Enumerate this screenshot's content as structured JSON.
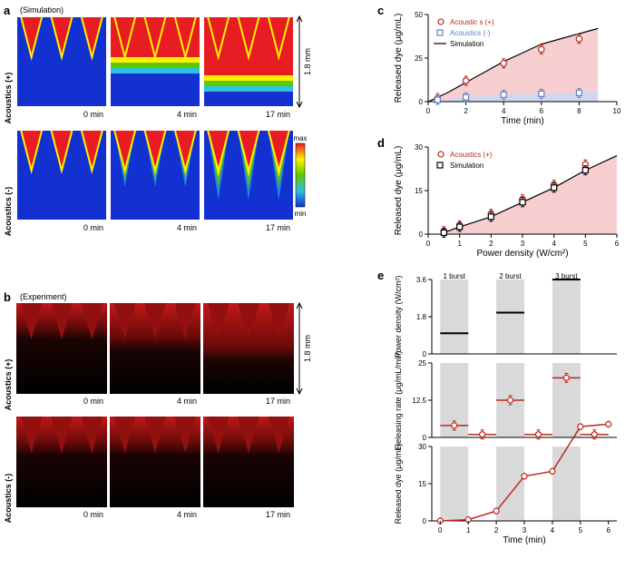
{
  "panelA": {
    "label": "a",
    "subtitle": "(Simulation)",
    "row1_label": "Acoustics (+)",
    "row2_label": "Acoustics (-)",
    "times": [
      "0 min",
      "4 min",
      "17 min"
    ],
    "scale_text": "1.8 mm",
    "colormap_labels": [
      "max",
      "min"
    ],
    "colors": {
      "bg": "#1330d0",
      "red": "#e81c23",
      "yellow": "#fff200",
      "cyan": "#2ec1e0",
      "green": "#5dc900"
    },
    "box_size": 100
  },
  "panelB": {
    "label": "b",
    "subtitle": "(Experiment)",
    "row1_label": "Acoustics (+)",
    "row2_label": "Acoustics (-)",
    "times": [
      "0 min",
      "4 min",
      "17 min"
    ],
    "scale_text": "1.8 mm",
    "box_size": 100
  },
  "panelC": {
    "label": "c",
    "legend": [
      "Acoustic s (+)",
      "Acoustics (-)",
      "Simulation"
    ],
    "legend_colors": [
      "#ba2a1d",
      "#6080c0",
      "#000000"
    ],
    "xlabel": "Time (min)",
    "ylabel": "Released dye (μg/mL)",
    "xlim": [
      0,
      10
    ],
    "ylim": [
      0,
      50
    ],
    "xticks": [
      0,
      2,
      4,
      6,
      8,
      10
    ],
    "yticks": [
      0,
      25,
      50
    ],
    "series_plus": {
      "x": [
        0.5,
        2,
        4,
        6,
        8
      ],
      "y": [
        2,
        12,
        22,
        30,
        36
      ],
      "color": "#ba2a1d"
    },
    "series_minus": {
      "x": [
        0.5,
        2,
        4,
        6,
        8
      ],
      "y": [
        1,
        2.5,
        4,
        4.5,
        5
      ],
      "color": "#6080c0"
    },
    "sim": {
      "x": [
        0,
        1,
        2,
        3,
        4,
        5,
        6,
        7,
        8,
        9
      ],
      "y": [
        0,
        5,
        11,
        17,
        23,
        28,
        33,
        36,
        39,
        42
      ]
    },
    "fill_plus": "#f6cacc",
    "fill_minus": "#cbd8ef"
  },
  "panelD": {
    "label": "d",
    "legend": [
      "Acoustics (+)",
      "Simulation"
    ],
    "legend_colors": [
      "#ba2a1d",
      "#000000"
    ],
    "xlabel": "Power density (W/cm²)",
    "ylabel": "Released dye (μg/mL)",
    "xlim": [
      0,
      6
    ],
    "ylim": [
      0,
      30
    ],
    "xticks": [
      0,
      1,
      2,
      3,
      4,
      5,
      6
    ],
    "yticks": [
      0,
      15,
      30
    ],
    "series": {
      "x": [
        0.5,
        1,
        2,
        3,
        4,
        5
      ],
      "y": [
        1,
        3,
        7,
        12,
        17,
        24
      ],
      "color": "#ba2a1d"
    },
    "sim": {
      "x": [
        0.5,
        1,
        2,
        3,
        4,
        5
      ],
      "y": [
        0.5,
        2.5,
        6,
        11,
        16,
        22
      ]
    },
    "fill": "#f6cacc"
  },
  "panelE": {
    "label": "e",
    "burst_labels": [
      "1 burst",
      "2 burst",
      "3 burst"
    ],
    "burst_times": [
      [
        0,
        1
      ],
      [
        2,
        3
      ],
      [
        4,
        5
      ]
    ],
    "power_levels": [
      1.0,
      2.0,
      3.6
    ],
    "power_yticks": [
      0,
      1.8,
      3.6
    ],
    "rate_values_on": [
      4,
      12.5,
      20
    ],
    "rate_values_off": [
      1,
      1,
      1
    ],
    "rate_yticks": [
      0,
      12.5,
      25
    ],
    "cum_x": [
      0,
      1,
      2,
      3,
      4,
      5,
      6
    ],
    "cum_y": [
      0,
      0.5,
      4,
      18,
      20,
      38,
      39
    ],
    "cum_yticks": [
      0,
      15,
      30
    ],
    "xlabel": "Time (min)",
    "ylabels": [
      "Power density (W/cm²)",
      "Releasing rate (μg/mL/min)",
      "Released dye (μg/mL)"
    ],
    "xlim": [
      -0.3,
      6.3
    ],
    "shade": "#d9d9d9",
    "color": "#ba2a1d"
  }
}
